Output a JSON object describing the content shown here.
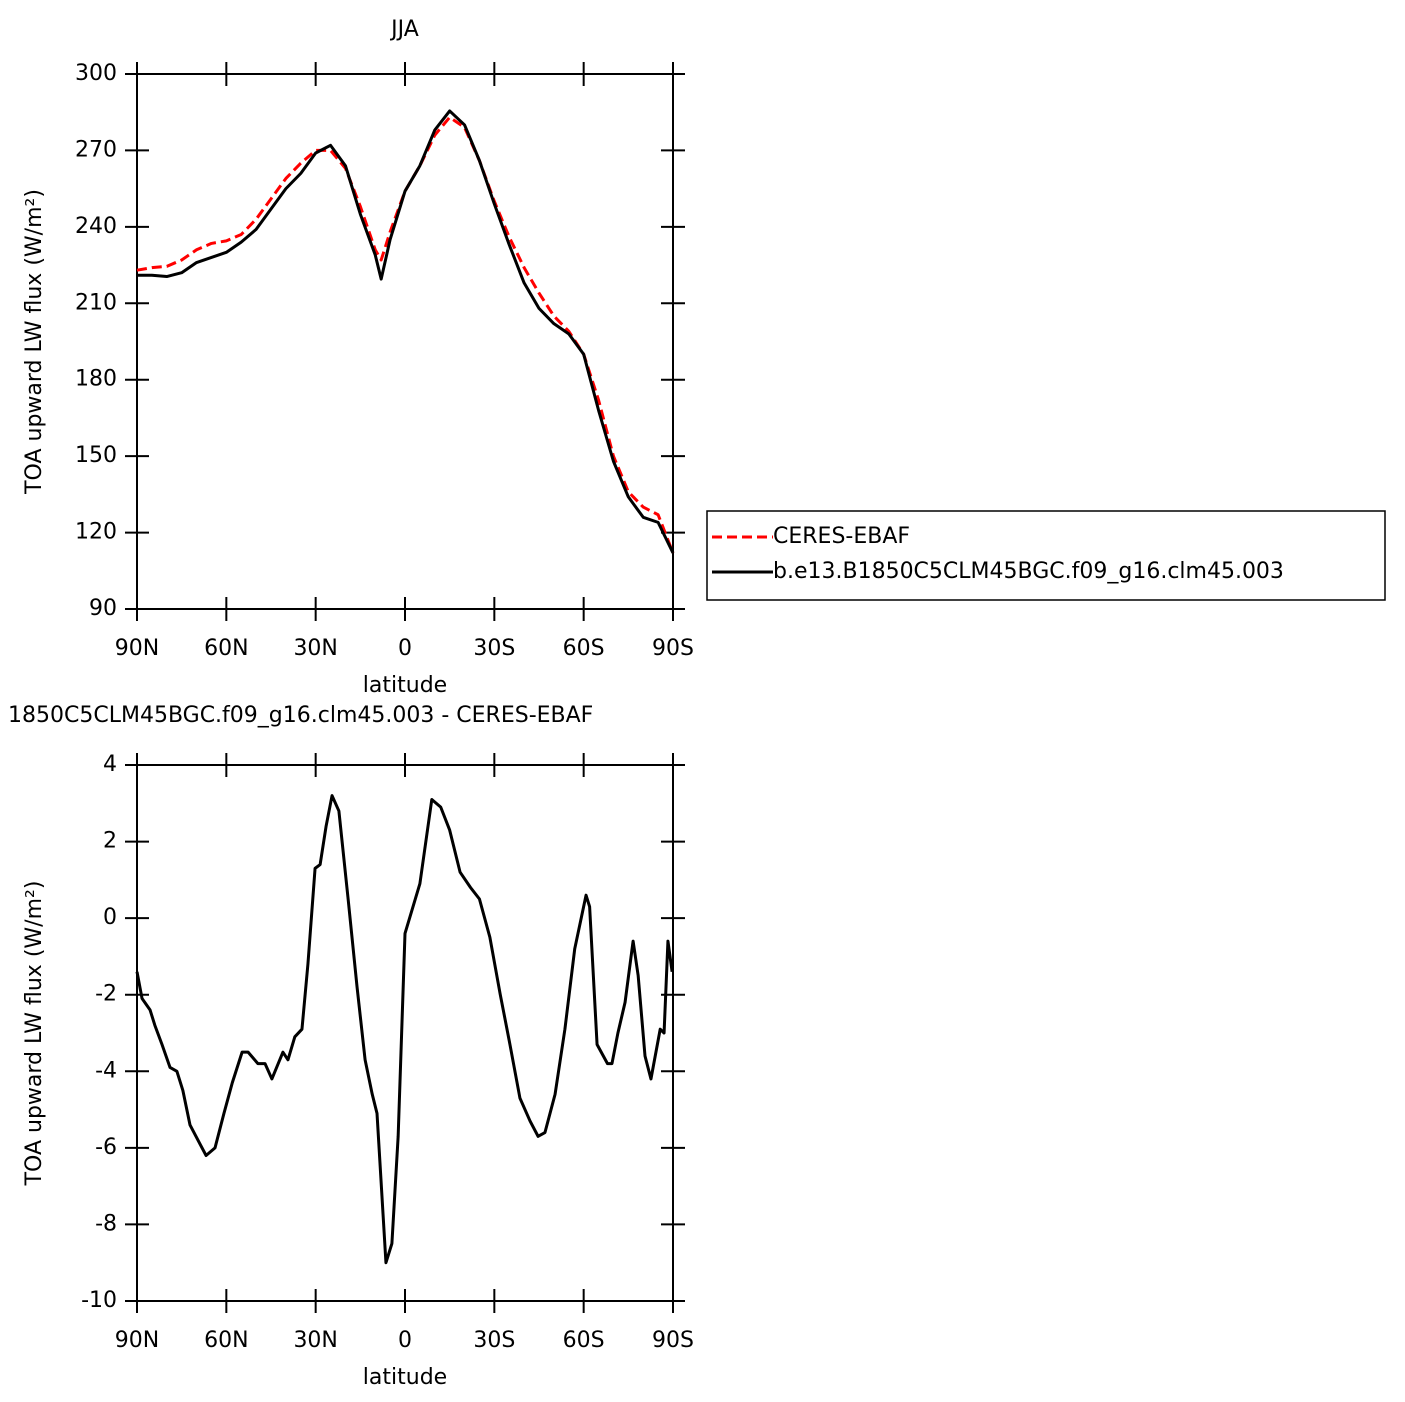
{
  "chart_data": [
    {
      "type": "line",
      "title": "JJA",
      "xlabel": "latitude",
      "ylabel": "TOA upward LW flux (W/m²)",
      "x": [
        90,
        85,
        80,
        75,
        70,
        65,
        60,
        55,
        50,
        45,
        40,
        35,
        30,
        25,
        20,
        15,
        10,
        8,
        5,
        0,
        -5,
        -10,
        -15,
        -20,
        -25,
        -30,
        -35,
        -40,
        -45,
        -50,
        -55,
        -60,
        -65,
        -70,
        -75,
        -80,
        -85,
        -90
      ],
      "series": [
        {
          "name": "CERES-EBAF",
          "color": "#ff0000",
          "style": "dashed",
          "values": [
            223,
            224,
            224.5,
            227,
            231,
            233.5,
            234.5,
            237,
            243,
            251,
            259,
            265,
            270,
            270,
            263,
            248,
            231,
            227,
            238,
            254,
            264,
            276,
            283,
            279,
            266,
            250,
            236,
            224,
            214,
            205,
            199,
            190,
            172,
            150,
            136,
            130,
            127,
            112
          ]
        },
        {
          "name": "b.e13.B1850C5CLM45BGC.f09_g16.clm45.003",
          "color": "#000000",
          "style": "solid",
          "values": [
            221,
            221,
            220.5,
            222,
            226,
            228,
            230,
            234,
            239,
            247,
            255,
            261,
            269,
            272,
            264,
            245,
            229,
            219.5,
            235,
            254,
            264,
            278,
            285.5,
            280,
            266,
            249,
            233,
            218,
            208,
            202,
            198,
            190,
            168,
            148,
            134,
            126,
            124,
            112
          ]
        }
      ],
      "xlim": [
        90,
        -90
      ],
      "xticks": [
        {
          "value": 90,
          "label": "90N"
        },
        {
          "value": 60,
          "label": "60N"
        },
        {
          "value": 30,
          "label": "30N"
        },
        0,
        {
          "value": -30,
          "label": "30S"
        },
        {
          "value": -60,
          "label": "60S"
        },
        {
          "value": -90,
          "label": "90S"
        }
      ],
      "ylim": [
        90,
        300
      ],
      "yticks": [
        90,
        120,
        150,
        180,
        210,
        240,
        270,
        300
      ],
      "legend": "right"
    },
    {
      "type": "line",
      "title": "1850C5CLM45BGC.f09_g16.clm45.003 - CERES-EBAF",
      "xlabel": "latitude",
      "ylabel": "TOA upward LW flux (W/m²)",
      "x": [
        90,
        88.3,
        85.6,
        84,
        81.6,
        78.9,
        76.6,
        74.6,
        72.2,
        70.2,
        66.8,
        63.8,
        60.8,
        58,
        54.7,
        52.7,
        49.4,
        47,
        44.7,
        41,
        39.3,
        37,
        34.6,
        32.6,
        30.2,
        28.5,
        26.5,
        24.5,
        22.2,
        19.1,
        16.1,
        13.4,
        11,
        9.4,
        6.4,
        4.4,
        2.3,
        0,
        -5,
        -9,
        -12,
        -15,
        -18.5,
        -22,
        -25,
        -28.5,
        -32,
        -35,
        -38.6,
        -42,
        -44.7,
        -47,
        -50.4,
        -53.7,
        -57,
        -60.8,
        -62,
        -64.5,
        -68,
        -69.5,
        -71.5,
        -73.9,
        -76.6,
        -78.3,
        -80.6,
        -82.6,
        -85.7,
        -87,
        -88.3,
        -89.7
      ],
      "values": [
        -1.4,
        -2.1,
        -2.4,
        -2.8,
        -3.3,
        -3.9,
        -4.0,
        -4.5,
        -5.4,
        -5.7,
        -6.2,
        -6.0,
        -5.1,
        -4.3,
        -3.5,
        -3.5,
        -3.8,
        -3.8,
        -4.2,
        -3.5,
        -3.7,
        -3.1,
        -2.9,
        -1.2,
        1.3,
        1.4,
        2.4,
        3.2,
        2.8,
        0.5,
        -1.8,
        -3.7,
        -4.6,
        -5.1,
        -9.0,
        -8.5,
        -5.7,
        -0.4,
        0.9,
        3.1,
        2.9,
        2.3,
        1.2,
        0.8,
        0.5,
        -0.5,
        -2.0,
        -3.2,
        -4.7,
        -5.3,
        -5.7,
        -5.6,
        -4.6,
        -2.9,
        -0.8,
        0.6,
        0.3,
        -3.3,
        -3.8,
        -3.8,
        -3.0,
        -2.2,
        -0.6,
        -1.5,
        -3.6,
        -4.2,
        -2.9,
        -3.0,
        -0.6,
        -1.4
      ],
      "color": "#000000",
      "xlim": [
        90,
        -90
      ],
      "xticks": [
        {
          "value": 90,
          "label": "90N"
        },
        {
          "value": 60,
          "label": "60N"
        },
        {
          "value": 30,
          "label": "30N"
        },
        0,
        {
          "value": -30,
          "label": "30S"
        },
        {
          "value": -60,
          "label": "60S"
        },
        {
          "value": -90,
          "label": "90S"
        }
      ],
      "ylim": [
        -10,
        4
      ],
      "yticks": [
        -10,
        -8,
        -6,
        -4,
        -2,
        0,
        2,
        4
      ]
    }
  ]
}
